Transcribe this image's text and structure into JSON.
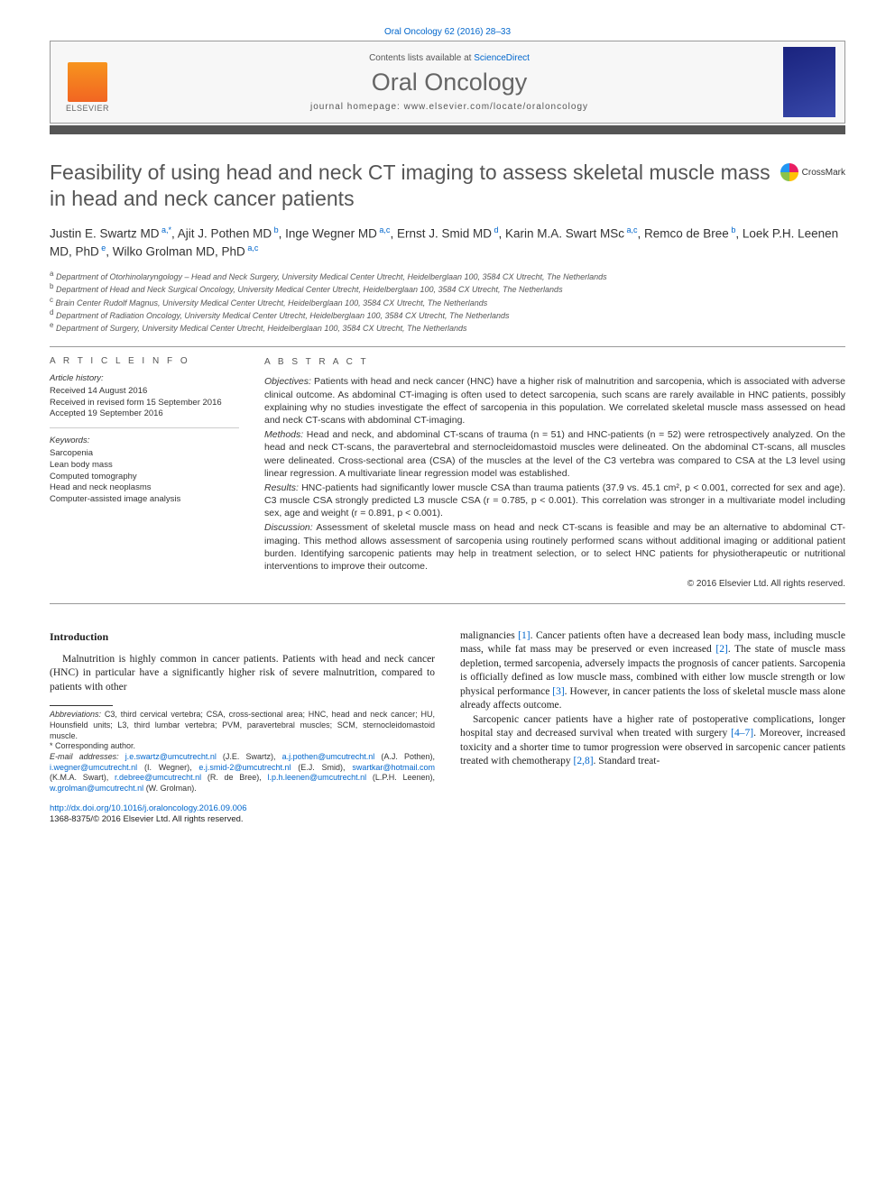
{
  "citation": "Oral Oncology 62 (2016) 28–33",
  "header": {
    "contents_prefix": "Contents lists available at ",
    "contents_link": "ScienceDirect",
    "journal": "Oral Oncology",
    "homepage_prefix": "journal homepage: ",
    "homepage_url": "www.elsevier.com/locate/oraloncology",
    "publisher": "ELSEVIER"
  },
  "crossmark": "CrossMark",
  "title": "Feasibility of using head and neck CT imaging to assess skeletal muscle mass in head and neck cancer patients",
  "authors_html": "Justin E. Swartz MD<span class=\"sup\"> a,*</span>, Ajit J. Pothen MD<span class=\"sup\"> b</span>, Inge Wegner MD<span class=\"sup\"> a,c</span>, Ernst J. Smid MD<span class=\"sup\"> d</span>, Karin M.A. Swart MSc<span class=\"sup\"> a,c</span>, Remco de Bree<span class=\"sup\"> b</span>, Loek P.H. Leenen MD, PhD<span class=\"sup\"> e</span>, Wilko Grolman MD, PhD<span class=\"sup\"> a,c</span>",
  "affiliations": [
    {
      "sup": "a",
      "text": "Department of Otorhinolaryngology – Head and Neck Surgery, University Medical Center Utrecht, Heidelberglaan 100, 3584 CX Utrecht, The Netherlands"
    },
    {
      "sup": "b",
      "text": "Department of Head and Neck Surgical Oncology, University Medical Center Utrecht, Heidelberglaan 100, 3584 CX Utrecht, The Netherlands"
    },
    {
      "sup": "c",
      "text": "Brain Center Rudolf Magnus, University Medical Center Utrecht, Heidelberglaan 100, 3584 CX Utrecht, The Netherlands"
    },
    {
      "sup": "d",
      "text": "Department of Radiation Oncology, University Medical Center Utrecht, Heidelberglaan 100, 3584 CX Utrecht, The Netherlands"
    },
    {
      "sup": "e",
      "text": "Department of Surgery, University Medical Center Utrecht, Heidelberglaan 100, 3584 CX Utrecht, The Netherlands"
    }
  ],
  "info": {
    "label": "A R T I C L E   I N F O",
    "history_head": "Article history:",
    "history": [
      "Received 14 August 2016",
      "Received in revised form 15 September 2016",
      "Accepted 19 September 2016"
    ],
    "keywords_head": "Keywords:",
    "keywords": [
      "Sarcopenia",
      "Lean body mass",
      "Computed tomography",
      "Head and neck neoplasms",
      "Computer-assisted image analysis"
    ]
  },
  "abstract": {
    "label": "A B S T R A C T",
    "sections": [
      {
        "head": "Objectives:",
        "text": "Patients with head and neck cancer (HNC) have a higher risk of malnutrition and sarcopenia, which is associated with adverse clinical outcome. As abdominal CT-imaging is often used to detect sarcopenia, such scans are rarely available in HNC patients, possibly explaining why no studies investigate the effect of sarcopenia in this population. We correlated skeletal muscle mass assessed on head and neck CT-scans with abdominal CT-imaging."
      },
      {
        "head": "Methods:",
        "text": "Head and neck, and abdominal CT-scans of trauma (n = 51) and HNC-patients (n = 52) were retrospectively analyzed. On the head and neck CT-scans, the paravertebral and sternocleidomastoid muscles were delineated. On the abdominal CT-scans, all muscles were delineated. Cross-sectional area (CSA) of the muscles at the level of the C3 vertebra was compared to CSA at the L3 level using linear regression. A multivariate linear regression model was established."
      },
      {
        "head": "Results:",
        "text": "HNC-patients had significantly lower muscle CSA than trauma patients (37.9 vs. 45.1 cm², p < 0.001, corrected for sex and age). C3 muscle CSA strongly predicted L3 muscle CSA (r = 0.785, p < 0.001). This correlation was stronger in a multivariate model including sex, age and weight (r = 0.891, p < 0.001)."
      },
      {
        "head": "Discussion:",
        "text": "Assessment of skeletal muscle mass on head and neck CT-scans is feasible and may be an alternative to abdominal CT-imaging. This method allows assessment of sarcopenia using routinely performed scans without additional imaging or additional patient burden. Identifying sarcopenic patients may help in treatment selection, or to select HNC patients for physiotherapeutic or nutritional interventions to improve their outcome."
      }
    ],
    "copyright": "© 2016 Elsevier Ltd. All rights reserved."
  },
  "body": {
    "intro_head": "Introduction",
    "left_para": "Malnutrition is highly common in cancer patients. Patients with head and neck cancer (HNC) in particular have a significantly higher risk of severe malnutrition, compared to patients with other",
    "right_para1_html": "malignancies <span class=\"ref-link\">[1]</span>. Cancer patients often have a decreased lean body mass, including muscle mass, while fat mass may be preserved or even increased <span class=\"ref-link\">[2]</span>. The state of muscle mass depletion, termed sarcopenia, adversely impacts the prognosis of cancer patients. Sarcopenia is officially defined as low muscle mass, combined with either low muscle strength or low physical performance <span class=\"ref-link\">[3]</span>. However, in cancer patients the loss of skeletal muscle mass alone already affects outcome.",
    "right_para2_html": "Sarcopenic cancer patients have a higher rate of postoperative complications, longer hospital stay and decreased survival when treated with surgery <span class=\"ref-link\">[4–7]</span>. Moreover, increased toxicity and a shorter time to tumor progression were observed in sarcopenic cancer patients treated with chemotherapy <span class=\"ref-link\">[2,8]</span>. Standard treat-"
  },
  "footnotes": {
    "abbrev_head": "Abbreviations:",
    "abbrev_body": "C3, third cervical vertebra; CSA, cross-sectional area; HNC, head and neck cancer; HU, Hounsfield units; L3, third lumbar vertebra; PVM, paravertebral muscles; SCM, sternocleidomastoid muscle.",
    "corr": "* Corresponding author.",
    "email_head": "E-mail addresses:",
    "emails_html": "<span class=\"link\">j.e.swartz@umcutrecht.nl</span> (J.E. Swartz), <span class=\"link\">a.j.pothen@umcutrecht.nl</span> (A.J. Pothen), <span class=\"link\">i.wegner@umcutrecht.nl</span> (I. Wegner), <span class=\"link\">e.j.smid-2@umcutrecht.nl</span> (E.J. Smid), <span class=\"link\">swartkar@hotmail.com</span> (K.M.A. Swart), <span class=\"link\">r.debree@umcutrecht.nl</span> (R. de Bree), <span class=\"link\">l.p.h.leenen@umcutrecht.nl</span> (L.P.H. Leenen), <span class=\"link\">w.grolman@umcutrecht.nl</span> (W. Grolman)."
  },
  "doi": {
    "url": "http://dx.doi.org/10.1016/j.oraloncology.2016.09.006",
    "issn": "1368-8375/© 2016 Elsevier Ltd. All rights reserved."
  }
}
